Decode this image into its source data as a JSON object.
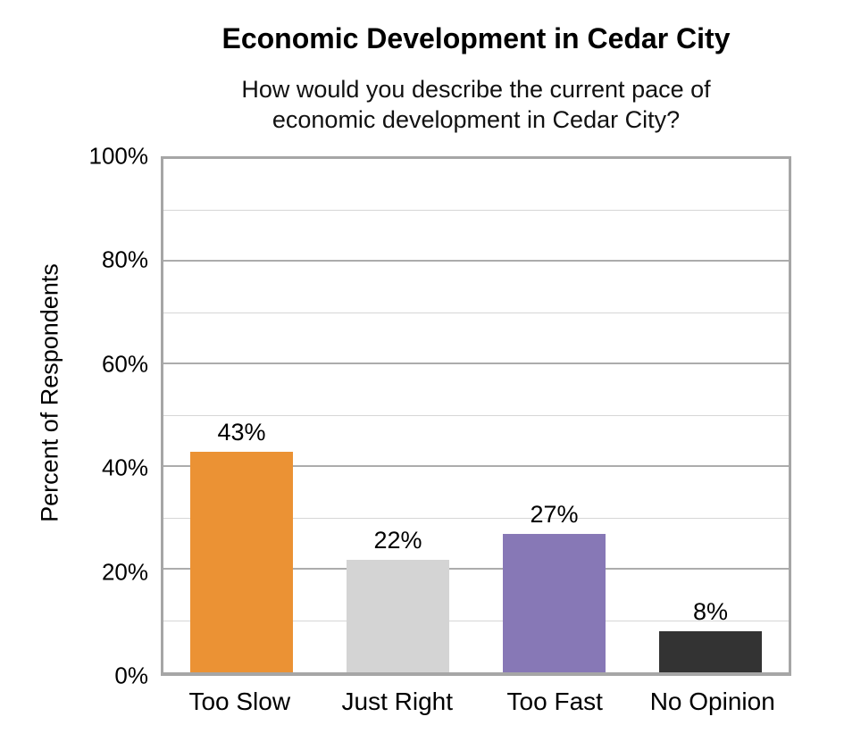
{
  "chart_data": {
    "type": "bar",
    "title": "Economic Development in Cedar City",
    "subtitle": "How would you describe the current pace of economic development in Cedar City?",
    "ylabel": "Percent of Respondents",
    "categories": [
      "Too Slow",
      "Just Right",
      "Too Fast",
      "No Opinion"
    ],
    "values": [
      43,
      22,
      27,
      8
    ],
    "value_labels": [
      "43%",
      "22%",
      "27%",
      "8%"
    ],
    "colors": [
      "#EB9234",
      "#D4D4D4",
      "#8778B6",
      "#333333"
    ],
    "yticks": [
      "0%",
      "20%",
      "40%",
      "60%",
      "80%",
      "100%"
    ],
    "ylim": [
      0,
      100
    ],
    "gridlines": {
      "minor_step": 10,
      "major_step": 20,
      "minor_color": "#D6D6D6",
      "major_color": "#ACACAC"
    },
    "axis_border_color": "#A6A6A6",
    "legend": "none"
  }
}
